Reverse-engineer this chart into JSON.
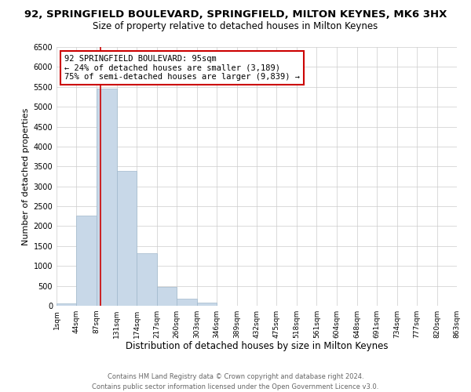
{
  "title": "92, SPRINGFIELD BOULEVARD, SPRINGFIELD, MILTON KEYNES, MK6 3HX",
  "subtitle": "Size of property relative to detached houses in Milton Keynes",
  "xlabel": "Distribution of detached houses by size in Milton Keynes",
  "ylabel": "Number of detached properties",
  "bar_color": "#c8d8e8",
  "bar_edgecolor": "#a0b8cc",
  "bins": [
    1,
    44,
    87,
    131,
    174,
    217,
    260,
    303,
    346,
    389,
    432,
    475,
    518,
    561,
    604,
    648,
    691,
    734,
    777,
    820,
    863
  ],
  "bin_labels": [
    "1sqm",
    "44sqm",
    "87sqm",
    "131sqm",
    "174sqm",
    "217sqm",
    "260sqm",
    "303sqm",
    "346sqm",
    "389sqm",
    "432sqm",
    "475sqm",
    "518sqm",
    "561sqm",
    "604sqm",
    "648sqm",
    "691sqm",
    "734sqm",
    "777sqm",
    "820sqm",
    "863sqm"
  ],
  "bar_heights": [
    50,
    2270,
    5450,
    3380,
    1310,
    470,
    185,
    80,
    0,
    0,
    0,
    0,
    0,
    0,
    0,
    0,
    0,
    0,
    0,
    0
  ],
  "ylim": [
    0,
    6500
  ],
  "yticks": [
    0,
    500,
    1000,
    1500,
    2000,
    2500,
    3000,
    3500,
    4000,
    4500,
    5000,
    5500,
    6000,
    6500
  ],
  "property_line_x": 95,
  "annotation_title": "92 SPRINGFIELD BOULEVARD: 95sqm",
  "annotation_line1": "← 24% of detached houses are smaller (3,189)",
  "annotation_line2": "75% of semi-detached houses are larger (9,839) →",
  "annotation_box_color": "#ffffff",
  "annotation_box_edgecolor": "#cc0000",
  "vline_color": "#cc0000",
  "footer_line1": "Contains HM Land Registry data © Crown copyright and database right 2024.",
  "footer_line2": "Contains public sector information licensed under the Open Government Licence v3.0.",
  "background_color": "#ffffff",
  "grid_color": "#cccccc",
  "title_fontsize": 9.5,
  "subtitle_fontsize": 8.5,
  "xlabel_fontsize": 8.5,
  "ylabel_fontsize": 8.0,
  "footer_fontsize": 6.0,
  "annotation_fontsize": 7.5
}
